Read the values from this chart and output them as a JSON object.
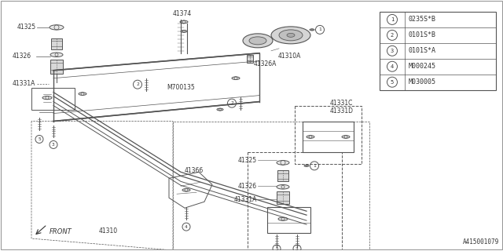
{
  "bg_color": "#ffffff",
  "line_color": "#555555",
  "text_color": "#333333",
  "legend_items": [
    {
      "num": "1",
      "code": "0235S*B"
    },
    {
      "num": "2",
      "code": "0101S*B"
    },
    {
      "num": "3",
      "code": "0101S*A"
    },
    {
      "num": "4",
      "code": "M000245"
    },
    {
      "num": "5",
      "code": "M030005"
    }
  ],
  "diagram_number": "A415001079",
  "front_label": "FRONT"
}
